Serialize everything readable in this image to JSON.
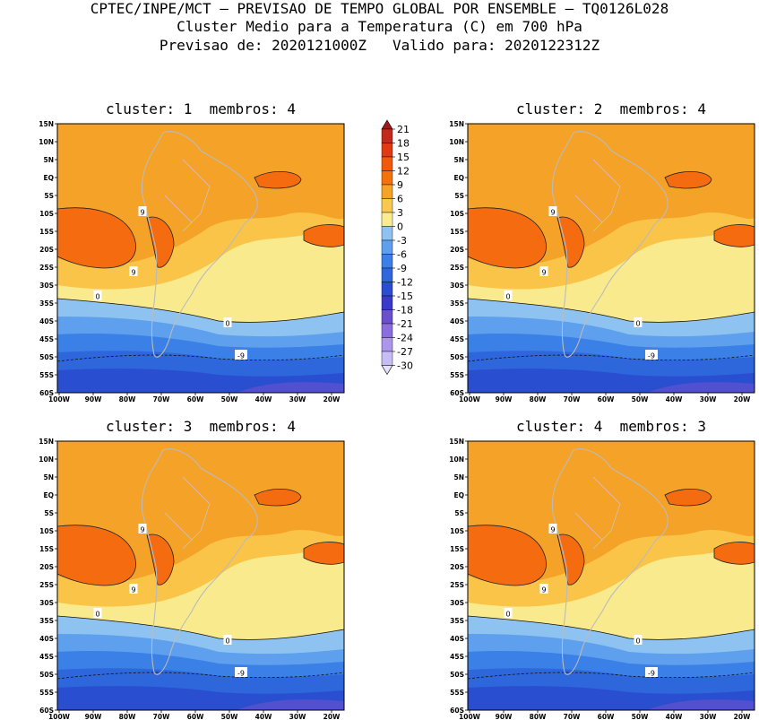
{
  "header": {
    "line1": "CPTEC/INPE/MCT – PREVISAO DE TEMPO GLOBAL POR ENSEMBLE – TQ0126L028",
    "line2": "Cluster Medio para a Temperatura (C) em 700 hPa",
    "line3": "Previsao de: 2020121000Z   Valido para: 2020122312Z"
  },
  "panels": [
    {
      "title": "cluster: 1  membros: 4",
      "warm_label": "9",
      "zero_label": "0",
      "cold_label": "-9"
    },
    {
      "title": "cluster: 2  membros: 4",
      "warm_label": "9",
      "zero_label": "0",
      "cold_label": "-9"
    },
    {
      "title": "cluster: 3  membros: 4",
      "warm_label": "9",
      "zero_label": "0",
      "cold_label": "-9"
    },
    {
      "title": "cluster: 4  membros: 3",
      "warm_label": "9",
      "zero_label": "0",
      "cold_label": "-9"
    }
  ],
  "lat_labels": [
    "15N",
    "10N",
    "5N",
    "EQ",
    "5S",
    "10S",
    "15S",
    "20S",
    "25S",
    "30S",
    "35S",
    "40S",
    "45S",
    "50S",
    "55S",
    "60S"
  ],
  "lon_labels": [
    "100W",
    "90W",
    "80W",
    "70W",
    "60W",
    "50W",
    "40W",
    "30W",
    "20W"
  ],
  "colorbar": {
    "levels": [
      "21",
      "18",
      "15",
      "12",
      "9",
      "6",
      "3",
      "0",
      "-3",
      "-6",
      "-9",
      "-12",
      "-15",
      "-18",
      "-21",
      "-24",
      "-27",
      "-30"
    ],
    "colors": [
      "#a01818",
      "#c42a1c",
      "#e03a14",
      "#f05a0e",
      "#f5720a",
      "#f6a226",
      "#f9c850",
      "#faea90",
      "#8ec2f0",
      "#5ea0ee",
      "#3a80e6",
      "#2e66dc",
      "#2a4ed0",
      "#3a3ac8",
      "#6a50d0",
      "#8a6ee0",
      "#ab96ec",
      "#c8bcf4",
      "#e6e0fa"
    ]
  }
}
